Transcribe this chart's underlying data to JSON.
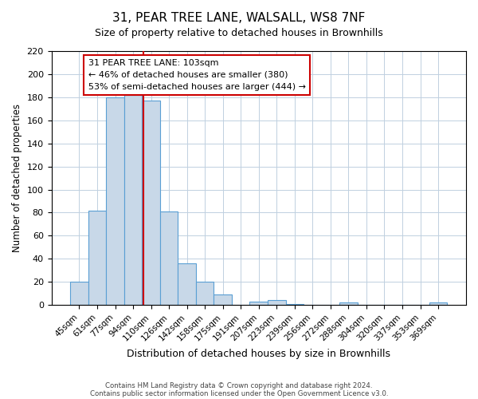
{
  "title": "31, PEAR TREE LANE, WALSALL, WS8 7NF",
  "subtitle": "Size of property relative to detached houses in Brownhills",
  "xlabel": "Distribution of detached houses by size in Brownhills",
  "ylabel": "Number of detached properties",
  "bar_labels": [
    "45sqm",
    "61sqm",
    "77sqm",
    "94sqm",
    "110sqm",
    "126sqm",
    "142sqm",
    "158sqm",
    "175sqm",
    "191sqm",
    "207sqm",
    "223sqm",
    "239sqm",
    "256sqm",
    "272sqm",
    "288sqm",
    "304sqm",
    "320sqm",
    "337sqm",
    "353sqm",
    "369sqm"
  ],
  "bar_values": [
    20,
    82,
    180,
    182,
    177,
    81,
    36,
    20,
    9,
    0,
    3,
    4,
    1,
    0,
    0,
    2,
    0,
    0,
    0,
    0,
    2
  ],
  "bar_color": "#c8d8e8",
  "bar_edge_color": "#5a9fd4",
  "ylim": [
    0,
    220
  ],
  "yticks": [
    0,
    20,
    40,
    60,
    80,
    100,
    120,
    140,
    160,
    180,
    200,
    220
  ],
  "annotation_title": "31 PEAR TREE LANE: 103sqm",
  "annotation_line1": "← 46% of detached houses are smaller (380)",
  "annotation_line2": "53% of semi-detached houses are larger (444) →",
  "vline_x": 3.5625,
  "footer1": "Contains HM Land Registry data © Crown copyright and database right 2024.",
  "footer2": "Contains public sector information licensed under the Open Government Licence v3.0.",
  "vline_color": "#cc0000",
  "ann_box_edge_color": "#cc0000",
  "grid_color": "#c0d0e0"
}
